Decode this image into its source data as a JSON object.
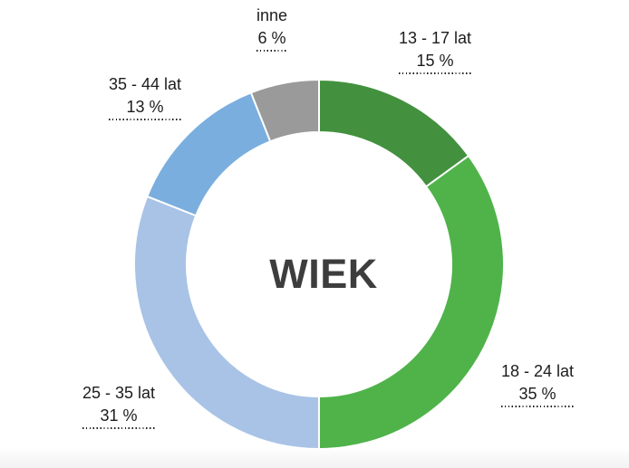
{
  "chart_data": {
    "type": "pie",
    "subtype": "donut",
    "title": "WIEK",
    "center_label": "WIEK",
    "direction": "clockwise",
    "start_angle_deg": 0,
    "inner_radius_ratio": 0.715,
    "legend": "none",
    "background_color": "#ffffff",
    "separator_color": "#ffffff",
    "label_text_color": "#1c1c1c",
    "center_label_color": "#3d3d3d",
    "slices": [
      {
        "label": "13 - 17 lat",
        "value": 15,
        "value_label": "15 %",
        "color": "#43913e"
      },
      {
        "label": "18 - 24 lat",
        "value": 35,
        "value_label": "35 %",
        "color": "#4fb34a"
      },
      {
        "label": "25 - 35 lat",
        "value": 31,
        "value_label": "31 %",
        "color": "#a9c3e6"
      },
      {
        "label": "35 - 44 lat",
        "value": 13,
        "value_label": "13 %",
        "color": "#7aaede"
      },
      {
        "label": "inne",
        "value": 6,
        "value_label": "6 %",
        "color": "#9a9a9a"
      }
    ]
  }
}
